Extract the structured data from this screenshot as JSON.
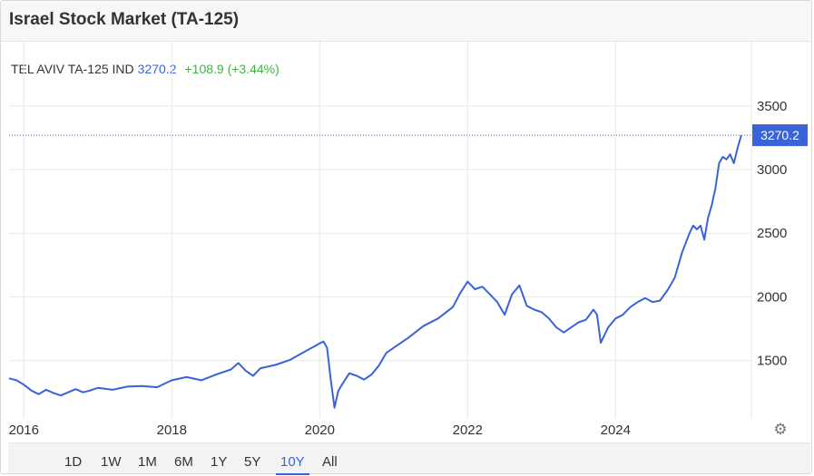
{
  "header": {
    "title": "Israel Stock Market (TA-125)"
  },
  "legend": {
    "symbol": "TEL AVIV TA-125 IND",
    "last": "3270.2",
    "change": "+108.9 (+3.44%)"
  },
  "colors": {
    "line": "#3a63d8",
    "up": "#3fb53f",
    "grid": "#e9e9e9",
    "last_label_bg": "#3a63d8"
  },
  "range_buttons": [
    {
      "label": "1D",
      "active": false
    },
    {
      "label": "1W",
      "active": false
    },
    {
      "label": "1M",
      "active": false
    },
    {
      "label": "6M",
      "active": false
    },
    {
      "label": "1Y",
      "active": false
    },
    {
      "label": "5Y",
      "active": false
    },
    {
      "label": "10Y",
      "active": true
    },
    {
      "label": "All",
      "active": false
    }
  ],
  "settings_icon": "gear-icon",
  "chart_data": {
    "type": "line",
    "title": "Israel Stock Market (TA-125)",
    "y_axis_position": "right",
    "grid": true,
    "xlim": [
      2015.8,
      2025.8
    ],
    "ylim": [
      1070,
      3620
    ],
    "y_ticks": [
      1500,
      2000,
      2500,
      3000,
      3500
    ],
    "x_ticks": [
      {
        "value": 2016.0,
        "label": "2016"
      },
      {
        "value": 2018.0,
        "label": "2018"
      },
      {
        "value": 2020.0,
        "label": "2020"
      },
      {
        "value": 2022.0,
        "label": "2022"
      },
      {
        "value": 2024.0,
        "label": "2024"
      }
    ],
    "last_value": 3270.2,
    "last_value_label": "3270.2",
    "series": [
      {
        "values": [
          [
            2015.8,
            1360
          ],
          [
            2015.9,
            1345
          ],
          [
            2016.0,
            1310
          ],
          [
            2016.1,
            1265
          ],
          [
            2016.2,
            1235
          ],
          [
            2016.3,
            1270
          ],
          [
            2016.4,
            1245
          ],
          [
            2016.5,
            1225
          ],
          [
            2016.6,
            1250
          ],
          [
            2016.7,
            1275
          ],
          [
            2016.8,
            1250
          ],
          [
            2016.9,
            1265
          ],
          [
            2017.0,
            1285
          ],
          [
            2017.2,
            1270
          ],
          [
            2017.4,
            1295
          ],
          [
            2017.6,
            1300
          ],
          [
            2017.8,
            1290
          ],
          [
            2018.0,
            1345
          ],
          [
            2018.2,
            1370
          ],
          [
            2018.4,
            1345
          ],
          [
            2018.6,
            1390
          ],
          [
            2018.8,
            1430
          ],
          [
            2018.9,
            1480
          ],
          [
            2019.0,
            1420
          ],
          [
            2019.1,
            1380
          ],
          [
            2019.2,
            1440
          ],
          [
            2019.4,
            1465
          ],
          [
            2019.6,
            1505
          ],
          [
            2019.8,
            1570
          ],
          [
            2020.0,
            1635
          ],
          [
            2020.05,
            1650
          ],
          [
            2020.1,
            1600
          ],
          [
            2020.15,
            1350
          ],
          [
            2020.2,
            1130
          ],
          [
            2020.25,
            1260
          ],
          [
            2020.3,
            1310
          ],
          [
            2020.4,
            1400
          ],
          [
            2020.5,
            1380
          ],
          [
            2020.6,
            1350
          ],
          [
            2020.7,
            1390
          ],
          [
            2020.8,
            1460
          ],
          [
            2020.9,
            1560
          ],
          [
            2021.0,
            1600
          ],
          [
            2021.2,
            1680
          ],
          [
            2021.4,
            1770
          ],
          [
            2021.6,
            1830
          ],
          [
            2021.8,
            1920
          ],
          [
            2021.9,
            2030
          ],
          [
            2022.0,
            2120
          ],
          [
            2022.1,
            2060
          ],
          [
            2022.2,
            2080
          ],
          [
            2022.3,
            2020
          ],
          [
            2022.4,
            1960
          ],
          [
            2022.5,
            1860
          ],
          [
            2022.6,
            2020
          ],
          [
            2022.7,
            2090
          ],
          [
            2022.75,
            2010
          ],
          [
            2022.8,
            1930
          ],
          [
            2022.9,
            1900
          ],
          [
            2023.0,
            1880
          ],
          [
            2023.1,
            1830
          ],
          [
            2023.2,
            1760
          ],
          [
            2023.3,
            1720
          ],
          [
            2023.4,
            1760
          ],
          [
            2023.5,
            1800
          ],
          [
            2023.6,
            1820
          ],
          [
            2023.7,
            1900
          ],
          [
            2023.75,
            1860
          ],
          [
            2023.8,
            1640
          ],
          [
            2023.85,
            1700
          ],
          [
            2023.9,
            1760
          ],
          [
            2024.0,
            1830
          ],
          [
            2024.1,
            1860
          ],
          [
            2024.2,
            1920
          ],
          [
            2024.3,
            1960
          ],
          [
            2024.4,
            1990
          ],
          [
            2024.5,
            1960
          ],
          [
            2024.6,
            1970
          ],
          [
            2024.7,
            2050
          ],
          [
            2024.8,
            2150
          ],
          [
            2024.9,
            2350
          ],
          [
            2025.0,
            2500
          ],
          [
            2025.05,
            2560
          ],
          [
            2025.1,
            2530
          ],
          [
            2025.15,
            2560
          ],
          [
            2025.2,
            2450
          ],
          [
            2025.25,
            2620
          ],
          [
            2025.3,
            2720
          ],
          [
            2025.35,
            2850
          ],
          [
            2025.4,
            3050
          ],
          [
            2025.45,
            3100
          ],
          [
            2025.5,
            3080
          ],
          [
            2025.55,
            3120
          ],
          [
            2025.6,
            3050
          ],
          [
            2025.65,
            3170
          ],
          [
            2025.7,
            3270.2
          ]
        ]
      }
    ]
  }
}
